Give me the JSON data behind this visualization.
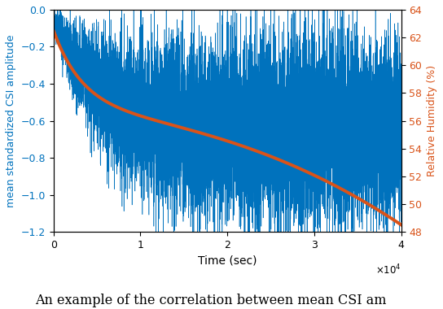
{
  "xlabel": "Time (sec)",
  "ylabel_left": "mean standardized CSI amplitude",
  "ylabel_right": "Relative Humidity (%)",
  "xlim": [
    0,
    40000
  ],
  "ylim_left": [
    -1.2,
    0
  ],
  "ylim_right": [
    48,
    64
  ],
  "xticks": [
    0,
    10000,
    20000,
    30000,
    40000
  ],
  "yticks_left": [
    0,
    -0.2,
    -0.4,
    -0.6,
    -0.8,
    -1.0,
    -1.2
  ],
  "yticks_right": [
    48,
    50,
    52,
    54,
    56,
    58,
    60,
    62,
    64
  ],
  "blue_color": "#0072BD",
  "orange_color": "#D95319",
  "caption": "An example of the correlation between mean CSI am",
  "caption_fontsize": 11.5,
  "seed": 42,
  "n_blue": 10000,
  "n_orange": 3000
}
